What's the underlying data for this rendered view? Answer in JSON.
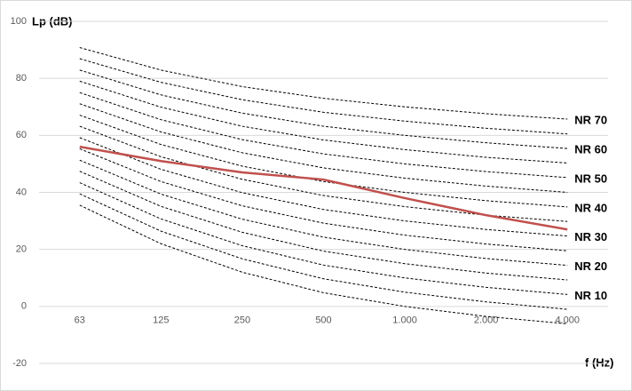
{
  "chart_data": {
    "type": "line",
    "y_label": "Lp (dB)",
    "x_label": "f (Hz)",
    "categories": [
      "63",
      "125",
      "250",
      "500",
      "1.000",
      "2.000",
      "4.000"
    ],
    "ylim": [
      -20,
      100
    ],
    "yticks": [
      -20,
      0,
      20,
      40,
      60,
      80,
      100
    ],
    "grid": true,
    "series": [
      {
        "color": "#000000",
        "dashed": true,
        "values": [
          35.5,
          22,
          12,
          4.8,
          0,
          -3.5,
          -6.1
        ]
      },
      {
        "color": "#000000",
        "dashed": true,
        "values": [
          39.5,
          26.4,
          16.7,
          9.7,
          5,
          1.6,
          -1
        ]
      },
      {
        "name": "NR 10",
        "color": "#000000",
        "dashed": true,
        "values": [
          43.4,
          30.7,
          21.3,
          14.5,
          10,
          6.7,
          4.2
        ]
      },
      {
        "color": "#000000",
        "dashed": true,
        "values": [
          47.4,
          35.1,
          26,
          19.4,
          15,
          11.7,
          9.3
        ]
      },
      {
        "name": "NR 20",
        "color": "#000000",
        "dashed": true,
        "values": [
          51.3,
          39.4,
          30.6,
          24.3,
          20,
          16.8,
          14.4
        ]
      },
      {
        "color": "#000000",
        "dashed": true,
        "values": [
          55.3,
          43.8,
          35.3,
          29.2,
          25,
          21.9,
          19.5
        ]
      },
      {
        "name": "NR 30",
        "color": "#000000",
        "dashed": true,
        "values": [
          59.2,
          48.1,
          39.9,
          34,
          30,
          27,
          24.7
        ]
      },
      {
        "color": "#000000",
        "dashed": true,
        "values": [
          63.2,
          52.5,
          44.6,
          38.9,
          35,
          32,
          29.8
        ]
      },
      {
        "name": "NR 40",
        "color": "#000000",
        "dashed": true,
        "values": [
          67.1,
          56.8,
          49.2,
          43.8,
          40,
          37.1,
          34.9
        ]
      },
      {
        "color": "#000000",
        "dashed": true,
        "values": [
          71.1,
          61.2,
          53.9,
          48.6,
          45,
          42.2,
          40
        ]
      },
      {
        "name": "NR 50",
        "color": "#000000",
        "dashed": true,
        "values": [
          75,
          65.5,
          58.5,
          53.5,
          50,
          47.3,
          45.2
        ]
      },
      {
        "color": "#000000",
        "dashed": true,
        "values": [
          79,
          69.9,
          63.2,
          58.4,
          55,
          52.3,
          50.3
        ]
      },
      {
        "name": "NR 60",
        "color": "#000000",
        "dashed": true,
        "values": [
          82.9,
          74.2,
          67.8,
          63.2,
          60,
          57.4,
          55.4
        ]
      },
      {
        "color": "#000000",
        "dashed": true,
        "values": [
          86.9,
          78.6,
          72.5,
          68.1,
          65,
          62.5,
          60.5
        ]
      },
      {
        "name": "NR 70",
        "color": "#000000",
        "dashed": true,
        "values": [
          90.8,
          82.9,
          77.1,
          73,
          70,
          67.6,
          65.7
        ]
      },
      {
        "color": "#c0504d",
        "dashed": false,
        "values": [
          56,
          51,
          47,
          44.5,
          38,
          32,
          27
        ]
      }
    ]
  }
}
